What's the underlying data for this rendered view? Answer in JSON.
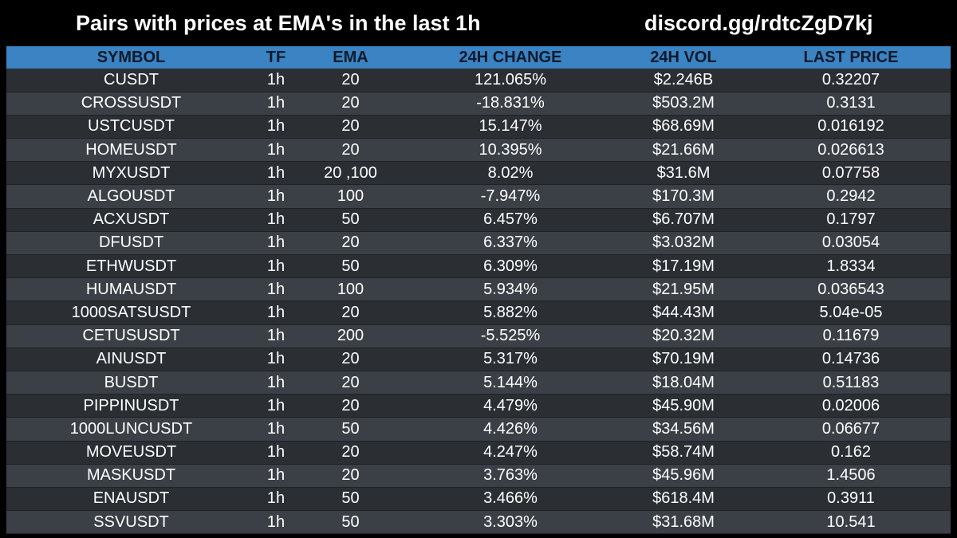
{
  "header": {
    "title": "Pairs with prices at EMA's in the last 1h",
    "link": "discord.gg/rdtcZgD7kj"
  },
  "colors": {
    "background": "#000000",
    "header_row": "#3b83c2",
    "row_dark": "#2b2f34",
    "row_light": "#3b4046",
    "text": "#ffffff"
  },
  "table": {
    "columns": [
      "SYMBOL",
      "TF",
      "EMA",
      "24H CHANGE",
      "24H VOL",
      "LAST PRICE"
    ],
    "rows": [
      {
        "symbol": "CUSDT",
        "tf": "1h",
        "ema": "20",
        "change": "121.065%",
        "vol": "$2.246B",
        "price": "0.32207"
      },
      {
        "symbol": "CROSSUSDT",
        "tf": "1h",
        "ema": "20",
        "change": "-18.831%",
        "vol": "$503.2M",
        "price": "0.3131"
      },
      {
        "symbol": "USTCUSDT",
        "tf": "1h",
        "ema": "20",
        "change": "15.147%",
        "vol": "$68.69M",
        "price": "0.016192"
      },
      {
        "symbol": "HOMEUSDT",
        "tf": "1h",
        "ema": "20",
        "change": "10.395%",
        "vol": "$21.66M",
        "price": "0.026613"
      },
      {
        "symbol": "MYXUSDT",
        "tf": "1h",
        "ema": "20 ,100",
        "change": "8.02%",
        "vol": "$31.6M",
        "price": "0.07758"
      },
      {
        "symbol": "ALGOUSDT",
        "tf": "1h",
        "ema": "100",
        "change": "-7.947%",
        "vol": "$170.3M",
        "price": "0.2942"
      },
      {
        "symbol": "ACXUSDT",
        "tf": "1h",
        "ema": "50",
        "change": "6.457%",
        "vol": "$6.707M",
        "price": "0.1797"
      },
      {
        "symbol": "DFUSDT",
        "tf": "1h",
        "ema": "20",
        "change": "6.337%",
        "vol": "$3.032M",
        "price": "0.03054"
      },
      {
        "symbol": "ETHWUSDT",
        "tf": "1h",
        "ema": "50",
        "change": "6.309%",
        "vol": "$17.19M",
        "price": "1.8334"
      },
      {
        "symbol": "HUMAUSDT",
        "tf": "1h",
        "ema": "100",
        "change": "5.934%",
        "vol": "$21.95M",
        "price": "0.036543"
      },
      {
        "symbol": "1000SATSUSDT",
        "tf": "1h",
        "ema": "20",
        "change": "5.882%",
        "vol": "$44.43M",
        "price": "5.04e-05"
      },
      {
        "symbol": "CETUSUSDT",
        "tf": "1h",
        "ema": "200",
        "change": "-5.525%",
        "vol": "$20.32M",
        "price": "0.11679"
      },
      {
        "symbol": "AINUSDT",
        "tf": "1h",
        "ema": "20",
        "change": "5.317%",
        "vol": "$70.19M",
        "price": "0.14736"
      },
      {
        "symbol": "BUSDT",
        "tf": "1h",
        "ema": "20",
        "change": "5.144%",
        "vol": "$18.04M",
        "price": "0.51183"
      },
      {
        "symbol": "PIPPINUSDT",
        "tf": "1h",
        "ema": "20",
        "change": "4.479%",
        "vol": "$45.90M",
        "price": "0.02006"
      },
      {
        "symbol": "1000LUNCUSDT",
        "tf": "1h",
        "ema": "50",
        "change": "4.426%",
        "vol": "$34.56M",
        "price": "0.06677"
      },
      {
        "symbol": "MOVEUSDT",
        "tf": "1h",
        "ema": "20",
        "change": "4.247%",
        "vol": "$58.74M",
        "price": "0.162"
      },
      {
        "symbol": "MASKUSDT",
        "tf": "1h",
        "ema": "20",
        "change": "3.763%",
        "vol": "$45.96M",
        "price": "1.4506"
      },
      {
        "symbol": "ENAUSDT",
        "tf": "1h",
        "ema": "50",
        "change": "3.466%",
        "vol": "$618.4M",
        "price": "0.3911"
      },
      {
        "symbol": "SSVUSDT",
        "tf": "1h",
        "ema": "50",
        "change": "3.303%",
        "vol": "$31.68M",
        "price": "10.541"
      }
    ]
  }
}
